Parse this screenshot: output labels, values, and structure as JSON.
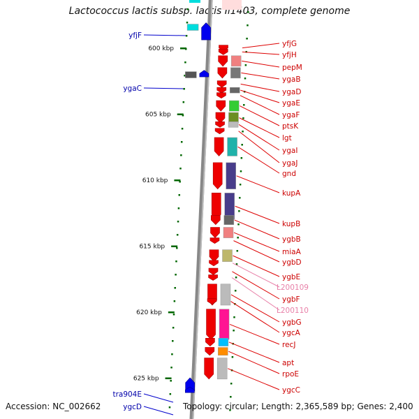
{
  "title": "Lactococcus lactis subsp. lactis Il1403, complete genome",
  "accession": "Accession: NC_002662",
  "summary": "Topology: circular; Length: 2,365,589 bp; Genes: 2,400",
  "colors": {
    "forward_arrow": "#ee0000",
    "reverse_arrow": "#0000ee",
    "backbone": "#888888",
    "ticks": "#006600",
    "label_red": "#cc0000",
    "label_pink": "#e880a8",
    "label_blue": "#0000aa",
    "leader_red": "#dd0000",
    "leader_blue": "#0000cc"
  },
  "scale": {
    "ticks": [
      {
        "label": "600 kbp",
        "kbp": 600
      },
      {
        "label": "605 kbp",
        "kbp": 605
      },
      {
        "label": "610 kbp",
        "kbp": 610
      },
      {
        "label": "615 kbp",
        "kbp": 615
      },
      {
        "label": "620 kbp",
        "kbp": 620
      },
      {
        "label": "625 kbp",
        "kbp": 625
      }
    ]
  },
  "genes_right": [
    {
      "name": "yfjG",
      "kbp": 600.3,
      "len": 0.3,
      "color": "#ffffff",
      "label_color": "red"
    },
    {
      "name": "yfjH",
      "kbp": 600.6,
      "len": 0.3,
      "color": "#ffffff",
      "label_color": "red"
    },
    {
      "name": "pepM",
      "kbp": 601.1,
      "len": 0.8,
      "color": "#f08080",
      "label_color": "red"
    },
    {
      "name": "ygaB",
      "kbp": 602.0,
      "len": 0.8,
      "color": "#777777",
      "label_color": "red"
    },
    {
      "name": "ygaD",
      "kbp": 603.0,
      "len": 0.5,
      "color": "#ffffff",
      "label_color": "red"
    },
    {
      "name": "ygaE",
      "kbp": 603.5,
      "len": 0.3,
      "color": "#666666",
      "label_color": "red"
    },
    {
      "name": "ygaF",
      "kbp": 603.9,
      "len": 0.3,
      "color": "#ffffff",
      "label_color": "red"
    },
    {
      "name": "ptsK",
      "kbp": 604.5,
      "len": 0.8,
      "color": "#33cc33",
      "label_color": "red"
    },
    {
      "name": "lgt",
      "kbp": 605.4,
      "len": 0.8,
      "color": "#6b8e23",
      "label_color": "red"
    },
    {
      "name": "ygaI",
      "kbp": 606.1,
      "len": 0.4,
      "color": "#bbbbbb",
      "label_color": "red"
    },
    {
      "name": "ygaJ",
      "kbp": 606.6,
      "len": 0.3,
      "color": "#ffffff",
      "label_color": "red"
    },
    {
      "name": "gnd",
      "kbp": 607.3,
      "len": 1.4,
      "color": "#20b2aa",
      "label_color": "red"
    },
    {
      "name": "kupA",
      "kbp": 609.2,
      "len": 2.0,
      "color": "#483d8b",
      "label_color": "red"
    },
    {
      "name": "kupB",
      "kbp": 611.5,
      "len": 2.0,
      "color": "#483d8b",
      "label_color": "red"
    },
    {
      "name": "ygbB",
      "kbp": 613.2,
      "len": 0.7,
      "color": "#666666",
      "label_color": "red"
    },
    {
      "name": "miaA",
      "kbp": 614.1,
      "len": 0.8,
      "color": "#f08080",
      "label_color": "red"
    },
    {
      "name": "ygbD",
      "kbp": 614.9,
      "len": 0.4,
      "color": "#ffffff",
      "label_color": "red"
    },
    {
      "name": "ygbE",
      "kbp": 615.8,
      "len": 0.9,
      "color": "#bdb76b",
      "label_color": "red"
    },
    {
      "name": "L200109",
      "kbp": 616.6,
      "len": 0.3,
      "color": "#ffffff",
      "label_color": "pink"
    },
    {
      "name": "ygbF",
      "kbp": 617.2,
      "len": 0.5,
      "color": "#ffffff",
      "label_color": "red"
    },
    {
      "name": "L200110",
      "kbp": 617.7,
      "len": 0.3,
      "color": "#ffffff",
      "label_color": "pink"
    },
    {
      "name": "ygbG",
      "kbp": 618.4,
      "len": 1.6,
      "color": "#bbbbbb",
      "label_color": "red"
    },
    {
      "name": "ygcA",
      "kbp": 619.5,
      "len": 0.3,
      "color": "#ffffff",
      "label_color": "red"
    },
    {
      "name": "recJ",
      "kbp": 620.3,
      "len": 2.3,
      "color": "#ff1493",
      "label_color": "red"
    },
    {
      "name": "apt",
      "kbp": 622.5,
      "len": 0.6,
      "color": "#00bfff",
      "label_color": "red"
    },
    {
      "name": "rpoE",
      "kbp": 623.2,
      "len": 0.6,
      "color": "#ff8c00",
      "label_color": "red"
    },
    {
      "name": "ygcC",
      "kbp": 624.0,
      "len": 1.6,
      "color": "#bbbbbb",
      "label_color": "red"
    }
  ],
  "genes_left": [
    {
      "name": "yfjF",
      "kbp": 598.6,
      "len": 1.3,
      "color": "#00dddd"
    },
    {
      "name": "ygaC",
      "kbp": 602.2,
      "len": 0.5,
      "color": "#555555"
    },
    {
      "name": "tra904E",
      "kbp": 625.5,
      "len": 1.0,
      "color": "#c8c8f0"
    },
    {
      "name": "ygcD",
      "kbp": 626.2,
      "len": 0.4,
      "color": "#0000ee"
    }
  ]
}
